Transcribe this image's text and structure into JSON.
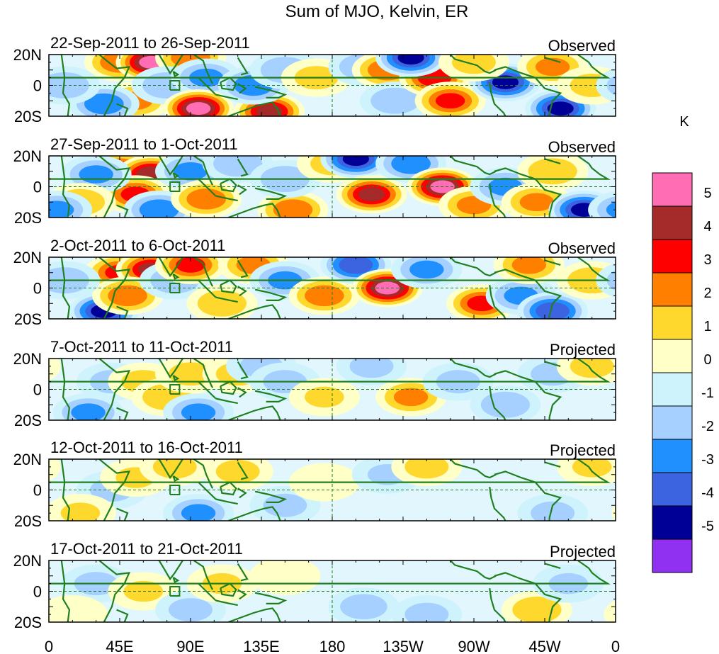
{
  "chart_data": {
    "type": "heatmap",
    "title": "Sum of MJO, Kelvin, ER",
    "xlabel": "",
    "ylabel": "",
    "x_ticks": [
      "0",
      "45E",
      "90E",
      "135E",
      "180",
      "135W",
      "90W",
      "45W",
      "0"
    ],
    "x_tick_degrees": [
      0,
      45,
      90,
      135,
      180,
      225,
      270,
      315,
      360
    ],
    "y_ticks": [
      "20N",
      "0",
      "20S"
    ],
    "y_tick_degrees": [
      20,
      0,
      -20
    ],
    "xlim": [
      0,
      360
    ],
    "ylim": [
      -20,
      20
    ],
    "colorbar": {
      "unit": "K",
      "labels": [
        "5",
        "4",
        "3",
        "2",
        "1",
        "0",
        "-1",
        "-2",
        "-3",
        "-4",
        "-5"
      ],
      "colors": [
        "#FF6EB4",
        "#A52A2A",
        "#FF0000",
        "#FF7F00",
        "#FFD82E",
        "#FFFFC8",
        "#CFF3FC",
        "#A6D0FF",
        "#2090FF",
        "#3C64E0",
        "#000096",
        "#9030F0"
      ],
      "bins": [
        ">5",
        "4 to 5",
        "3 to 4",
        "2 to 3",
        "1 to 2",
        "0 to 1",
        "-1 to 0",
        "-2 to -1",
        "-3 to -2",
        "-4 to -3",
        "-5 to -4",
        "<-5"
      ]
    },
    "panels": [
      {
        "date_range": "22-Sep-2011 to 26-Sep-2011",
        "status": "Observed",
        "anomalies": [
          {
            "lon": 45,
            "lat": 15,
            "value": 3.0
          },
          {
            "lon": 65,
            "lat": 15,
            "value": 5.5
          },
          {
            "lon": 90,
            "lat": 18,
            "value": 3.0
          },
          {
            "lon": 55,
            "lat": -10,
            "value": 2.5
          },
          {
            "lon": 35,
            "lat": -12,
            "value": -3.0
          },
          {
            "lon": 75,
            "lat": 0,
            "value": -2.0
          },
          {
            "lon": 100,
            "lat": 5,
            "value": -2.5
          },
          {
            "lon": 95,
            "lat": -15,
            "value": 5.5
          },
          {
            "lon": 140,
            "lat": -17,
            "value": 4.5
          },
          {
            "lon": 130,
            "lat": 0,
            "value": -3.0
          },
          {
            "lon": 150,
            "lat": 10,
            "value": -2.0
          },
          {
            "lon": 170,
            "lat": 5,
            "value": 1.5
          },
          {
            "lon": 200,
            "lat": 12,
            "value": -2.0
          },
          {
            "lon": 215,
            "lat": 10,
            "value": 3.0
          },
          {
            "lon": 220,
            "lat": -10,
            "value": -2.0
          },
          {
            "lon": 245,
            "lat": 5,
            "value": 4.0
          },
          {
            "lon": 255,
            "lat": -10,
            "value": 3.5
          },
          {
            "lon": 230,
            "lat": 18,
            "value": -4.5
          },
          {
            "lon": 290,
            "lat": 2,
            "value": -4.5
          },
          {
            "lon": 320,
            "lat": 12,
            "value": 2.5
          },
          {
            "lon": 325,
            "lat": -15,
            "value": -4.5
          },
          {
            "lon": 345,
            "lat": 0,
            "value": 1.5
          },
          {
            "lon": 10,
            "lat": 0,
            "value": -2.0
          },
          {
            "lon": 270,
            "lat": 15,
            "value": 1.5
          }
        ]
      },
      {
        "date_range": "27-Sep-2011 to 1-Oct-2011",
        "status": "Observed",
        "anomalies": [
          {
            "lon": 45,
            "lat": 10,
            "value": 4.5
          },
          {
            "lon": 65,
            "lat": 8,
            "value": 5.0
          },
          {
            "lon": 55,
            "lat": -5,
            "value": 3.5
          },
          {
            "lon": 30,
            "lat": 8,
            "value": -2.5
          },
          {
            "lon": 20,
            "lat": -10,
            "value": 2.0
          },
          {
            "lon": 70,
            "lat": -15,
            "value": -3.0
          },
          {
            "lon": 90,
            "lat": 10,
            "value": -2.5
          },
          {
            "lon": 120,
            "lat": 15,
            "value": -2.0
          },
          {
            "lon": 100,
            "lat": -8,
            "value": 3.0
          },
          {
            "lon": 155,
            "lat": -15,
            "value": 3.0
          },
          {
            "lon": 150,
            "lat": 5,
            "value": -2.0
          },
          {
            "lon": 180,
            "lat": 15,
            "value": 1.5
          },
          {
            "lon": 195,
            "lat": 18,
            "value": -4.5
          },
          {
            "lon": 205,
            "lat": -5,
            "value": 4.5
          },
          {
            "lon": 230,
            "lat": 15,
            "value": -3.0
          },
          {
            "lon": 250,
            "lat": 0,
            "value": 5.5
          },
          {
            "lon": 270,
            "lat": -12,
            "value": 2.5
          },
          {
            "lon": 290,
            "lat": 0,
            "value": -2.5
          },
          {
            "lon": 310,
            "lat": -10,
            "value": 2.5
          },
          {
            "lon": 340,
            "lat": -15,
            "value": -4.5
          },
          {
            "lon": 320,
            "lat": 10,
            "value": 2.0
          },
          {
            "lon": 5,
            "lat": -15,
            "value": -2.5
          }
        ]
      },
      {
        "date_range": "2-Oct-2011 to 6-Oct-2011",
        "status": "Observed",
        "anomalies": [
          {
            "lon": 45,
            "lat": 10,
            "value": 3.5
          },
          {
            "lon": 65,
            "lat": 12,
            "value": 4.5
          },
          {
            "lon": 35,
            "lat": -15,
            "value": -4.5
          },
          {
            "lon": 50,
            "lat": -5,
            "value": 3.0
          },
          {
            "lon": 80,
            "lat": 5,
            "value": -2.0
          },
          {
            "lon": 90,
            "lat": 15,
            "value": 3.5
          },
          {
            "lon": 130,
            "lat": 15,
            "value": 2.5
          },
          {
            "lon": 110,
            "lat": -10,
            "value": 2.0
          },
          {
            "lon": 150,
            "lat": 5,
            "value": -2.5
          },
          {
            "lon": 175,
            "lat": -5,
            "value": 3.0
          },
          {
            "lon": 195,
            "lat": 15,
            "value": -4.0
          },
          {
            "lon": 215,
            "lat": 0,
            "value": 5.5
          },
          {
            "lon": 240,
            "lat": 12,
            "value": -2.5
          },
          {
            "lon": 275,
            "lat": -10,
            "value": 3.5
          },
          {
            "lon": 300,
            "lat": -5,
            "value": -2.5
          },
          {
            "lon": 320,
            "lat": -15,
            "value": -4.0
          },
          {
            "lon": 305,
            "lat": 15,
            "value": 2.5
          },
          {
            "lon": 345,
            "lat": 5,
            "value": 2.0
          },
          {
            "lon": 10,
            "lat": 5,
            "value": -2.0
          }
        ]
      },
      {
        "date_range": "7-Oct-2011 to 11-Oct-2011",
        "status": "Projected",
        "anomalies": [
          {
            "lon": 25,
            "lat": -15,
            "value": -2.5
          },
          {
            "lon": 40,
            "lat": 5,
            "value": -1.5
          },
          {
            "lon": 60,
            "lat": 5,
            "value": 1.5
          },
          {
            "lon": 75,
            "lat": -5,
            "value": 2.0
          },
          {
            "lon": 95,
            "lat": -15,
            "value": -2.5
          },
          {
            "lon": 90,
            "lat": 10,
            "value": 1.5
          },
          {
            "lon": 120,
            "lat": 10,
            "value": 1.5
          },
          {
            "lon": 135,
            "lat": 15,
            "value": -1.5
          },
          {
            "lon": 150,
            "lat": 5,
            "value": -1.5
          },
          {
            "lon": 175,
            "lat": -5,
            "value": 1.2
          },
          {
            "lon": 205,
            "lat": 15,
            "value": -1.5
          },
          {
            "lon": 230,
            "lat": -5,
            "value": 2.5
          },
          {
            "lon": 260,
            "lat": 5,
            "value": -1.5
          },
          {
            "lon": 290,
            "lat": -10,
            "value": -2.0
          },
          {
            "lon": 320,
            "lat": 10,
            "value": -1.5
          },
          {
            "lon": 345,
            "lat": 15,
            "value": 1.5
          }
        ]
      },
      {
        "date_range": "12-Oct-2011 to 16-Oct-2011",
        "status": "Projected",
        "anomalies": [
          {
            "lon": 40,
            "lat": 0,
            "value": -1.5
          },
          {
            "lon": 55,
            "lat": 8,
            "value": 1.2
          },
          {
            "lon": 80,
            "lat": 15,
            "value": 1.5
          },
          {
            "lon": 95,
            "lat": -15,
            "value": -2.5
          },
          {
            "lon": 120,
            "lat": 12,
            "value": 1.5
          },
          {
            "lon": 150,
            "lat": -10,
            "value": -1.5
          },
          {
            "lon": 175,
            "lat": 5,
            "value": 1.0
          },
          {
            "lon": 215,
            "lat": 10,
            "value": -1.2
          },
          {
            "lon": 240,
            "lat": 15,
            "value": 1.5
          },
          {
            "lon": 20,
            "lat": -15,
            "value": 1.2
          },
          {
            "lon": 320,
            "lat": -15,
            "value": -1.5
          },
          {
            "lon": 345,
            "lat": 15,
            "value": 1.2
          }
        ]
      },
      {
        "date_range": "17-Oct-2011 to 21-Oct-2011",
        "status": "Projected",
        "anomalies": [
          {
            "lon": 30,
            "lat": 5,
            "value": -1.5
          },
          {
            "lon": 60,
            "lat": 0,
            "value": 1.2
          },
          {
            "lon": 90,
            "lat": -12,
            "value": -1.5
          },
          {
            "lon": 110,
            "lat": 5,
            "value": 1.2
          },
          {
            "lon": 150,
            "lat": 10,
            "value": 1.0
          },
          {
            "lon": 200,
            "lat": -10,
            "value": -1.8
          },
          {
            "lon": 240,
            "lat": -15,
            "value": -1.5
          },
          {
            "lon": 310,
            "lat": -12,
            "value": 2.0
          },
          {
            "lon": 330,
            "lat": 5,
            "value": -1.2
          },
          {
            "lon": 15,
            "lat": -15,
            "value": 1.0
          }
        ]
      }
    ]
  }
}
